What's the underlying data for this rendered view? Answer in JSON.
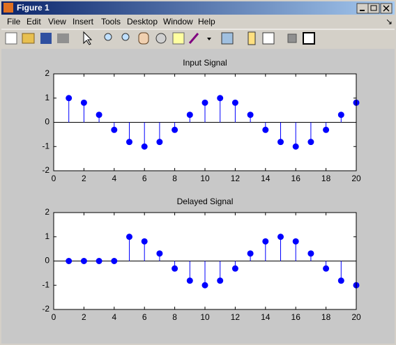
{
  "window": {
    "title": "Figure 1",
    "menu": [
      "File",
      "Edit",
      "View",
      "Insert",
      "Tools",
      "Desktop",
      "Window",
      "Help"
    ]
  },
  "chart_data": [
    {
      "type": "stem",
      "title": "Input Signal",
      "color": "#0000ff",
      "x": [
        1,
        2,
        3,
        4,
        5,
        6,
        7,
        8,
        9,
        10,
        11,
        12,
        13,
        14,
        15,
        16,
        17,
        18,
        19,
        20
      ],
      "values": [
        1,
        0.81,
        0.31,
        -0.31,
        -0.81,
        -1,
        -0.81,
        -0.31,
        0.31,
        0.81,
        1,
        0.81,
        0.31,
        -0.31,
        -0.81,
        -1,
        -0.81,
        -0.31,
        0.31,
        0.81
      ],
      "xlim": [
        0,
        20
      ],
      "xticks": [
        0,
        2,
        4,
        6,
        8,
        10,
        12,
        14,
        16,
        18,
        20
      ],
      "ylim": [
        -2,
        2
      ],
      "yticks": [
        -2,
        -1,
        0,
        1,
        2
      ]
    },
    {
      "type": "stem",
      "title": "Delayed Signal",
      "color": "#0000ff",
      "x": [
        1,
        2,
        3,
        4,
        5,
        6,
        7,
        8,
        9,
        10,
        11,
        12,
        13,
        14,
        15,
        16,
        17,
        18,
        19,
        20
      ],
      "values": [
        0,
        0,
        0,
        0,
        1,
        0.81,
        0.31,
        -0.31,
        -0.81,
        -1,
        -0.81,
        -0.31,
        0.31,
        0.81,
        1,
        0.81,
        0.31,
        -0.31,
        -0.81,
        -1
      ],
      "xlim": [
        0,
        20
      ],
      "xticks": [
        0,
        2,
        4,
        6,
        8,
        10,
        12,
        14,
        16,
        18,
        20
      ],
      "ylim": [
        -2,
        2
      ],
      "yticks": [
        -2,
        -1,
        0,
        1,
        2
      ]
    }
  ]
}
